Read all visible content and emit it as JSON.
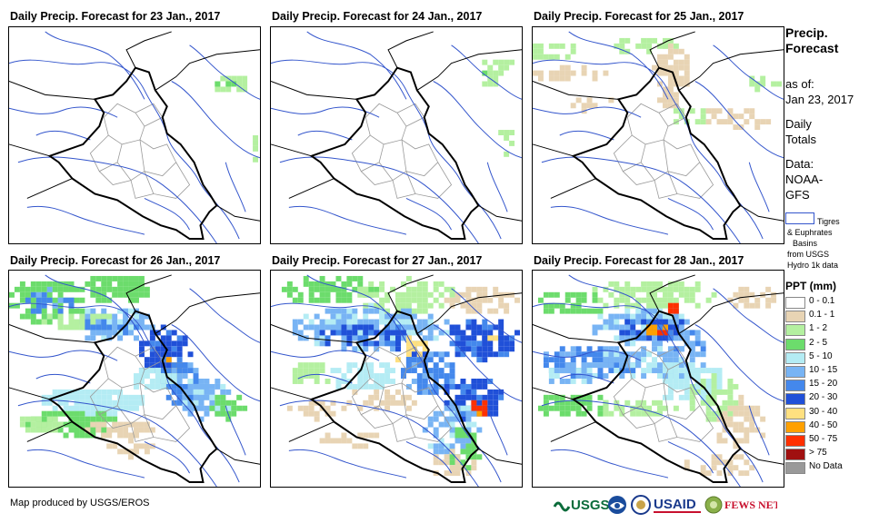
{
  "panels": [
    {
      "title": "Daily Precip. Forecast for 23 Jan., 2017",
      "pattern": "p23"
    },
    {
      "title": "Daily Precip. Forecast for 24 Jan., 2017",
      "pattern": "p24"
    },
    {
      "title": "Daily Precip. Forecast for 25 Jan., 2017",
      "pattern": "p25"
    },
    {
      "title": "Daily Precip. Forecast for 26 Jan., 2017",
      "pattern": "p26"
    },
    {
      "title": "Daily Precip. Forecast for 27 Jan., 2017",
      "pattern": "p27"
    },
    {
      "title": "Daily Precip. Forecast for 28 Jan., 2017",
      "pattern": "p28"
    }
  ],
  "legend": {
    "title_line1": "Precip.",
    "title_line2": "Forecast",
    "asof_line1": "as of:",
    "asof_line2": "Jan 23, 2017",
    "daily_line1": "Daily",
    "daily_line2": "Totals",
    "data_line1": "Data:",
    "data_line2": "NOAA-",
    "data_line3": "GFS",
    "basin_lines": [
      "Tigres",
      "& Euphrates",
      "Basins",
      "from USGS",
      "Hydro 1k data"
    ],
    "ppt_title": "PPT (mm)",
    "classes": [
      {
        "label": "0 - 0.1",
        "color": "#ffffff"
      },
      {
        "label": "0.1 - 1",
        "color": "#e8d4b4"
      },
      {
        "label": "1 - 2",
        "color": "#b4f0a0"
      },
      {
        "label": "2 - 5",
        "color": "#6cdc6c"
      },
      {
        "label": "5 - 10",
        "color": "#b4ecf4"
      },
      {
        "label": "10 - 15",
        "color": "#78b4f4"
      },
      {
        "label": "15 - 20",
        "color": "#4488ec"
      },
      {
        "label": "20 - 30",
        "color": "#2050d8"
      },
      {
        "label": "30 - 40",
        "color": "#ffe080"
      },
      {
        "label": "40 - 50",
        "color": "#ffa000"
      },
      {
        "label": "50 - 75",
        "color": "#ff3000"
      },
      {
        "label": "> 75",
        "color": "#a01010"
      },
      {
        "label": "No Data",
        "color": "#999999"
      }
    ]
  },
  "footer": {
    "credit": "Map produced by USGS/EROS",
    "logos": [
      "USGS",
      "NOAA",
      "DOS",
      "USAID",
      "FEWS NET"
    ]
  }
}
